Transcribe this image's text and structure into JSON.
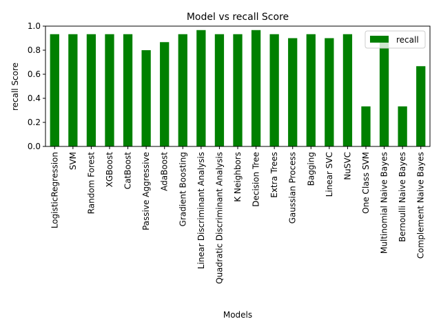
{
  "chart_data": {
    "type": "bar",
    "title": "Model vs recall Score",
    "xlabel": "Models",
    "ylabel": "recall Score",
    "ylim": [
      0,
      1.0
    ],
    "yticks": [
      "0.0",
      "0.2",
      "0.4",
      "0.6",
      "0.8",
      "1.0"
    ],
    "grid": false,
    "legend_position": "top-right",
    "bar_color": "#008000",
    "categories": [
      "LogisticRegression",
      "SVM",
      "Random Forest",
      "XGBoost",
      "CatBoost",
      "Passive Aggressive",
      "AdaBoost",
      "Gradient Boosting",
      "Linear Discriminant Analysis",
      "Quadratic Discriminant Analysis",
      "K Neighbors",
      "Decision Tree",
      "Extra Trees",
      "Gaussian Process",
      "Bagging",
      "Linear SVC",
      "NuSVC",
      "One Class SVM",
      "Multinomial Naive Bayes",
      "Bernoulli Naive Bayes",
      "Complement Naive Bayes"
    ],
    "series": [
      {
        "name": "recall",
        "values": [
          0.933,
          0.933,
          0.933,
          0.933,
          0.933,
          0.8,
          0.867,
          0.933,
          0.967,
          0.933,
          0.933,
          0.967,
          0.933,
          0.9,
          0.933,
          0.9,
          0.933,
          0.333,
          0.9,
          0.333,
          0.667
        ]
      }
    ]
  }
}
